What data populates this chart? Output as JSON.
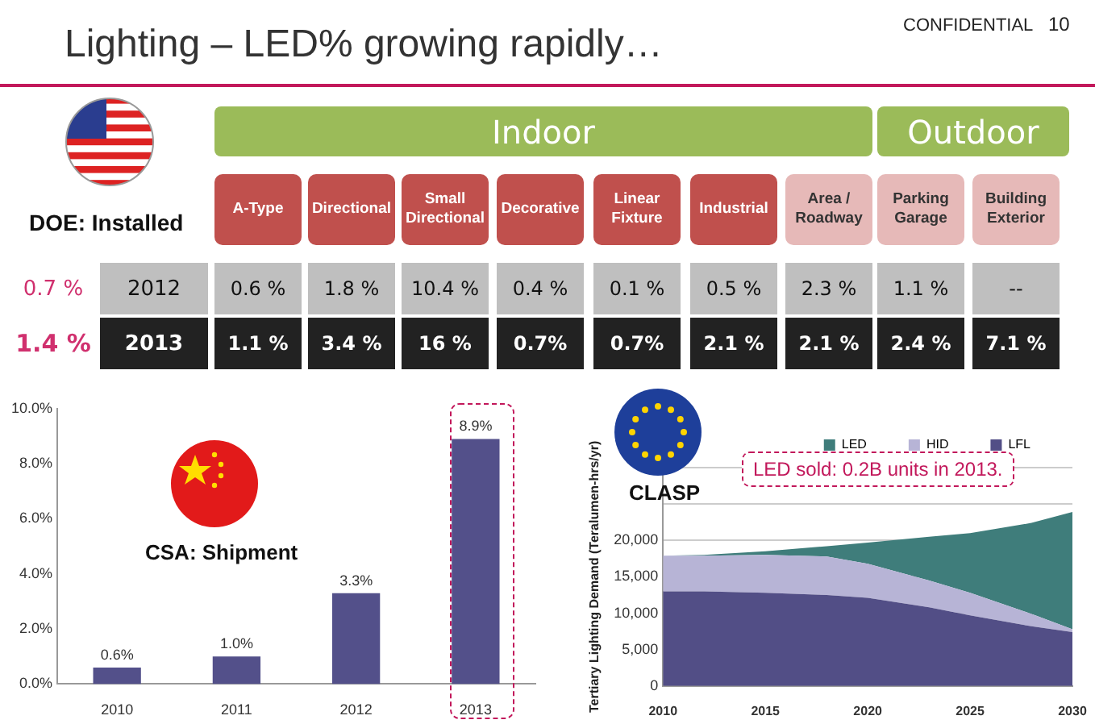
{
  "chart_data": [
    {
      "type": "heatmap",
      "title": "Lighting – LED% growing rapidly…",
      "subtitle": "DOE: Installed",
      "categories": [
        "A-Type",
        "Directional",
        "Small Directional",
        "Decorative",
        "Linear Fixture",
        "Industrial",
        "Area / Roadway",
        "Parking Garage",
        "Building Exterior"
      ],
      "y_categories": [
        "2012",
        "2013"
      ],
      "y2_categories": [
        "0.7 %",
        "1.4 %"
      ],
      "cells": [
        [
          0.6,
          1.8,
          10.4,
          0.4,
          0.1,
          0.5,
          2.3,
          1.1,
          null
        ],
        [
          1.1,
          3.4,
          16,
          0.7,
          0.7,
          2.1,
          2.1,
          2.4,
          7.1
        ]
      ],
      "cell_labels": [
        [
          "0.6 %",
          "1.8 %",
          "10.4 %",
          "0.4 %",
          "0.1 %",
          "0.5 %",
          "2.3 %",
          "1.1 %",
          "--"
        ],
        [
          "1.1 %",
          "3.4 %",
          "16 %",
          "0.7%",
          "0.7%",
          "2.1 %",
          "2.1 %",
          "2.4 %",
          "7.1 %"
        ]
      ],
      "annotations": [
        "CONFIDENTIAL",
        "10",
        "Indoor",
        "Outdoor"
      ]
    },
    {
      "type": "bar",
      "categories": [
        "2010",
        "2011",
        "2012",
        "2013"
      ],
      "values": [
        0.6,
        1.0,
        3.3,
        8.9
      ],
      "color": "#53508a",
      "value_labels": [
        "0.6%",
        "1.0%",
        "3.3%",
        "8.9%"
      ],
      "ylim": [
        0,
        10
      ],
      "yticks": [
        {
          "value": 0,
          "label": "0.0%"
        },
        {
          "value": 2,
          "label": "2.0%"
        },
        {
          "value": 4,
          "label": "4.0%"
        },
        {
          "value": 6,
          "label": "6.0%"
        },
        {
          "value": 8,
          "label": "8.0%"
        },
        {
          "value": 10,
          "label": "10.0%"
        }
      ],
      "grid": false,
      "annotations": [
        "CSA: Shipment"
      ]
    },
    {
      "type": "area",
      "stacked": true,
      "ylabel": "Tertiary Lighting Demand (Teralumen-hrs/yr)",
      "x": [
        2010,
        2012,
        2015,
        2018,
        2020,
        2023,
        2025,
        2028,
        2030
      ],
      "series": [
        {
          "name": "LFL",
          "color": "#524e86",
          "values": [
            13000,
            13000,
            12800,
            12500,
            12100,
            10800,
            9700,
            8200,
            7400
          ]
        },
        {
          "name": "HID",
          "color": "#b7b4d6",
          "values": [
            4900,
            4900,
            5200,
            5300,
            4700,
            3700,
            3100,
            1700,
            400
          ]
        },
        {
          "name": "LED",
          "color": "#3f7d7b",
          "values": [
            0,
            100,
            500,
            1400,
            2900,
            6000,
            8200,
            12500,
            16100
          ]
        }
      ],
      "xlim": [
        2010,
        2030
      ],
      "xticks": [
        2010,
        2015,
        2020,
        2025,
        2030
      ],
      "ylim": [
        0,
        30000
      ],
      "yticks": [
        0,
        {
          "value": 5000,
          "label": "5,000"
        },
        {
          "value": 10000,
          "label": "10,000"
        },
        {
          "value": 15000,
          "label": "15,000"
        },
        {
          "value": 20000,
          "label": "20,000"
        },
        {
          "value": 25000,
          "label": null
        },
        {
          "value": 30000,
          "label": null
        }
      ],
      "grid": "y",
      "legend": "top",
      "annotations": [
        "CLASP",
        "LED sold: 0.2B units in 2013."
      ]
    }
  ]
}
